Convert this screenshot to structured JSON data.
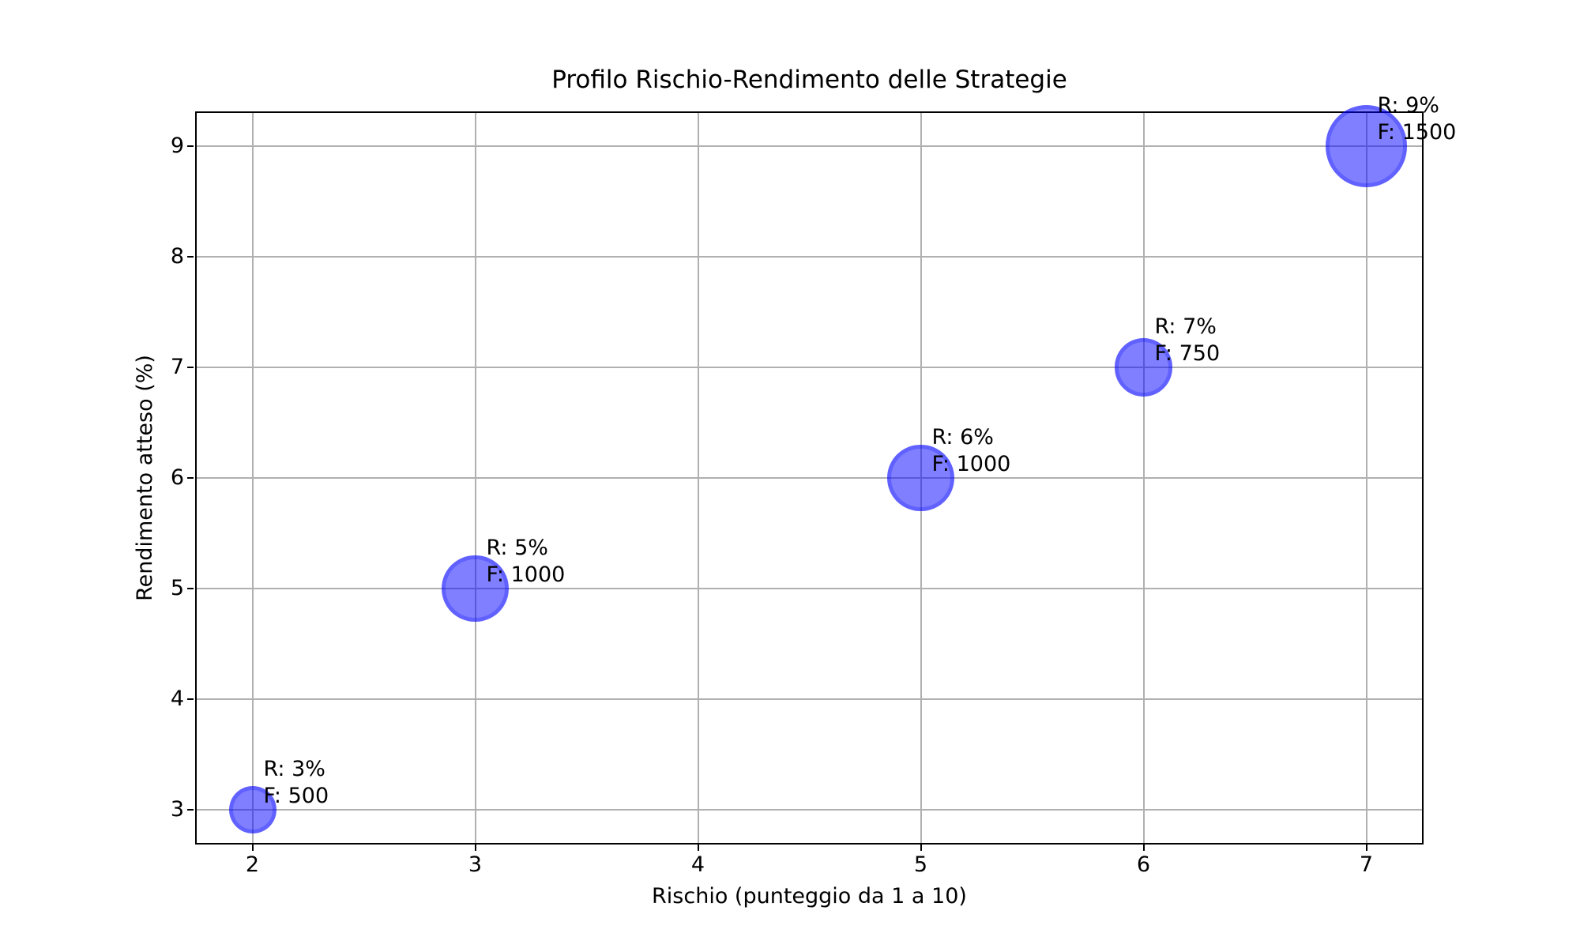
{
  "chart_data": {
    "type": "scatter",
    "title": "Profilo Rischio-Rendimento delle Strategie",
    "xlabel": "Rischio (punteggio da 1 a 10)",
    "ylabel": "Rendimento atteso (%)",
    "xlim": [
      1.75,
      7.25
    ],
    "ylim": [
      2.7,
      9.3
    ],
    "xticks": [
      2,
      3,
      4,
      5,
      6,
      7
    ],
    "yticks": [
      3,
      4,
      5,
      6,
      7,
      8,
      9
    ],
    "grid": true,
    "legend": false,
    "colors": {
      "bubble_fill": "rgba(0,0,255,0.5)",
      "bubble_edge": "rgba(0,0,255,0.24)",
      "grid": "#b0b0b0",
      "axis": "#000000",
      "background": "#ffffff"
    },
    "points": [
      {
        "x": 2,
        "y": 3,
        "size": 500,
        "label_line1": "R: 3%",
        "label_line2": "F: 500"
      },
      {
        "x": 3,
        "y": 5,
        "size": 1000,
        "label_line1": "R: 5%",
        "label_line2": "F: 1000"
      },
      {
        "x": 5,
        "y": 6,
        "size": 1000,
        "label_line1": "R: 6%",
        "label_line2": "F: 1000"
      },
      {
        "x": 6,
        "y": 7,
        "size": 750,
        "label_line1": "R: 7%",
        "label_line2": "F: 750"
      },
      {
        "x": 7,
        "y": 9,
        "size": 1500,
        "label_line1": "R: 9%",
        "label_line2": "F: 1500"
      }
    ]
  }
}
